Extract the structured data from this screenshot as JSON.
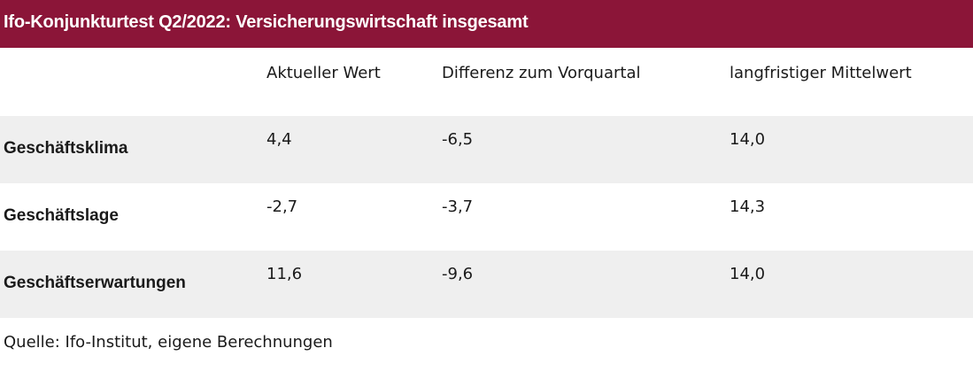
{
  "title": "Ifo-Konjunkturtest Q2/2022: Versicherungswirtschaft insgesamt",
  "columns": [
    "Aktueller Wert",
    "Differenz zum Vorquartal",
    "langfristiger Mittelwert"
  ],
  "rows": [
    {
      "label": "Geschäftsklima",
      "values": [
        "4,4",
        "-6,5",
        "14,0"
      ]
    },
    {
      "label": "Geschäftslage",
      "values": [
        "-2,7",
        "-3,7",
        "14,3"
      ]
    },
    {
      "label": "Geschäftserwartungen",
      "values": [
        "11,6",
        "-9,6",
        "14,0"
      ]
    }
  ],
  "source": "Quelle: Ifo-Institut, eigene Berechnungen",
  "colors": {
    "title_bar": "#8b1538",
    "row_shade": "#efefef"
  }
}
